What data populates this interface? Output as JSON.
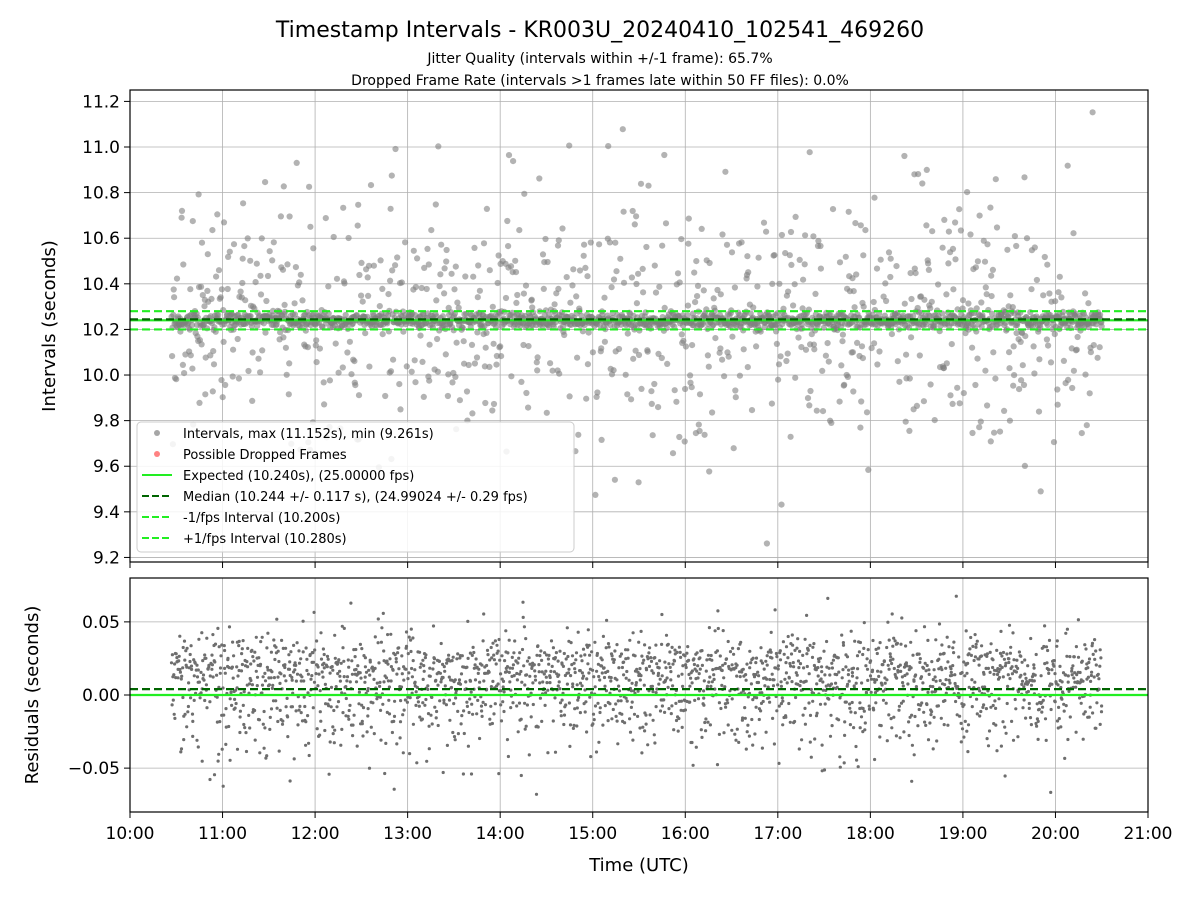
{
  "chart_data": [
    {
      "type": "scatter",
      "title": "Timestamp Intervals - KR003U_20240410_102541_469260",
      "subtitle_lines": [
        "Jitter Quality (intervals within +/-1 frame): 65.7%",
        "Dropped Frame Rate (intervals >1 frames late within 50 FF files): 0.0%"
      ],
      "xlabel": "",
      "ylabel": "Intervals (seconds)",
      "x_range_hours_utc": [
        10.0,
        21.0
      ],
      "data_x_range_hours_utc": [
        10.45,
        20.5
      ],
      "ylim": [
        9.18,
        11.25
      ],
      "yticks": [
        9.2,
        9.4,
        9.6,
        9.8,
        10.0,
        10.2,
        10.4,
        10.6,
        10.8,
        11.0,
        11.2
      ],
      "ytick_labels": [
        "9.2",
        "9.4",
        "9.6",
        "9.8",
        "10.0",
        "10.2",
        "10.4",
        "10.6",
        "10.8",
        "11.0",
        "11.2"
      ],
      "grid": true,
      "legend_position": "lower-left",
      "legend": [
        {
          "label": "Intervals, max (11.152s), min (9.261s)",
          "marker": "dot",
          "color": "#808080"
        },
        {
          "label": "Possible Dropped Frames",
          "marker": "dot",
          "color": "#ff4d4d"
        },
        {
          "label": "Expected (10.240s), (25.00000 fps)",
          "marker": "solid-line",
          "color": "#22ee22"
        },
        {
          "label": "Median (10.244 +/- 0.117 s), (24.99024 +/- 0.29 fps)",
          "marker": "dashed-line",
          "color": "#006400"
        },
        {
          "label": "-1/fps Interval (10.200s)",
          "marker": "dashed-line",
          "color": "#22ee22"
        },
        {
          "label": "+1/fps Interval (10.280s)",
          "marker": "dashed-line",
          "color": "#22ee22"
        }
      ],
      "reference_lines": [
        {
          "name": "expected",
          "y": 10.24,
          "style": "solid",
          "color": "#22ee22"
        },
        {
          "name": "median",
          "y": 10.244,
          "style": "dashed",
          "color": "#006400"
        },
        {
          "name": "minus-1-fps",
          "y": 10.2,
          "style": "dashed",
          "color": "#22ee22"
        },
        {
          "name": "plus-1-fps",
          "y": 10.28,
          "style": "dashed",
          "color": "#22ee22"
        }
      ],
      "series": [
        {
          "name": "Intervals",
          "color": "#808080",
          "count": 2240,
          "median": 10.244,
          "max": 11.152,
          "min": 9.261
        }
      ]
    },
    {
      "type": "scatter",
      "xlabel": "Time (UTC)",
      "ylabel": "Residuals (seconds)",
      "x_range_hours_utc": [
        10.0,
        21.0
      ],
      "xticks_hours": [
        10,
        11,
        12,
        13,
        14,
        15,
        16,
        17,
        18,
        19,
        20,
        21
      ],
      "xtick_labels": [
        "10:00",
        "11:00",
        "12:00",
        "13:00",
        "14:00",
        "15:00",
        "16:00",
        "17:00",
        "18:00",
        "19:00",
        "20:00",
        "21:00"
      ],
      "ylim": [
        -0.08,
        0.08
      ],
      "yticks": [
        -0.05,
        0.0,
        0.05
      ],
      "ytick_labels": [
        "−0.05",
        "0.00",
        "0.05"
      ],
      "grid": true,
      "reference_lines": [
        {
          "name": "zero",
          "y": 0.0,
          "style": "solid",
          "color": "#22ee22"
        },
        {
          "name": "median-offset",
          "y": 0.004,
          "style": "dashed",
          "color": "#006400"
        }
      ],
      "series": [
        {
          "name": "Residuals",
          "color": "#6e6e6e",
          "count": 2240
        }
      ]
    }
  ]
}
